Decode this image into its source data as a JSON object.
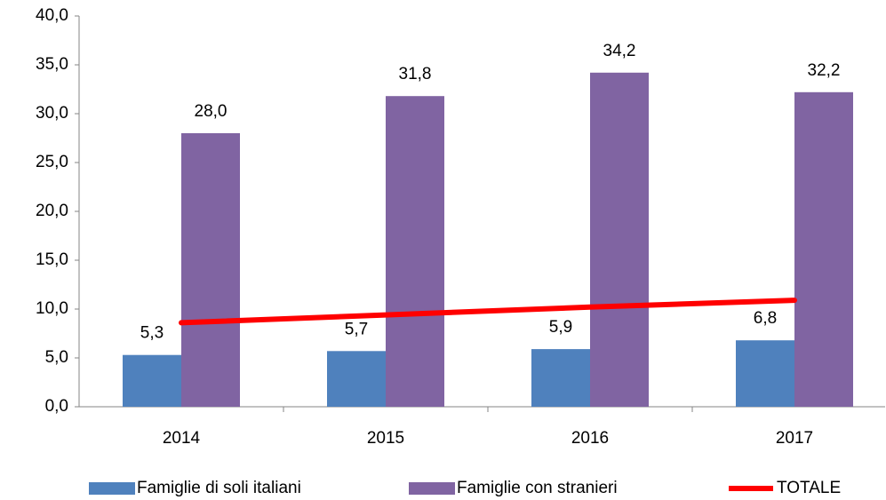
{
  "chart_data": {
    "type": "bar",
    "categories": [
      "2014",
      "2015",
      "2016",
      "2017"
    ],
    "series": [
      {
        "name": "Famiglie di soli italiani",
        "color": "#4f81bd",
        "values": [
          5.3,
          5.7,
          5.9,
          6.8
        ],
        "value_labels": [
          "5,3",
          "5,7",
          "5,9",
          "6,8"
        ]
      },
      {
        "name": "Famiglie con stranieri",
        "color": "#8064a2",
        "values": [
          28.0,
          31.8,
          34.2,
          32.2
        ],
        "value_labels": [
          "28,0",
          "31,8",
          "34,2",
          "32,2"
        ]
      },
      {
        "name": "TOTALE",
        "color": "#ff0000",
        "type": "line",
        "values": [
          8.6,
          9.4,
          10.2,
          10.9
        ]
      }
    ],
    "ylim": [
      0,
      40
    ],
    "yticks": [
      {
        "value": 0,
        "label": "0,0"
      },
      {
        "value": 5,
        "label": "5,0"
      },
      {
        "value": 10,
        "label": "10,0"
      },
      {
        "value": 15,
        "label": "15,0"
      },
      {
        "value": 20,
        "label": "20,0"
      },
      {
        "value": 25,
        "label": "25,0"
      },
      {
        "value": 30,
        "label": "30,0"
      },
      {
        "value": 35,
        "label": "35,0"
      },
      {
        "value": 40,
        "label": "40,0"
      }
    ],
    "legend": "bottom"
  }
}
